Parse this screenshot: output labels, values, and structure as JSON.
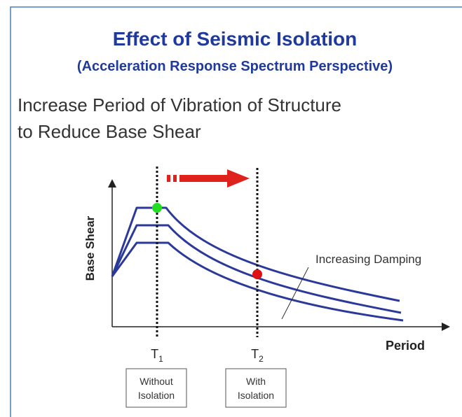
{
  "title": "Effect of Seismic Isolation",
  "subtitle": "(Acceleration Response Spectrum Perspective)",
  "heading": [
    "Increase Period of Vibration of Structure",
    "to Reduce Base Shear"
  ],
  "diagram": {
    "y_axis_label": "Base Shear",
    "x_axis_label": "Period",
    "annotation": "Increasing Damping",
    "periods": [
      {
        "symbol": "T",
        "subscript": "1",
        "box": [
          "Without",
          "Isolation"
        ]
      },
      {
        "symbol": "T",
        "subscript": "2",
        "box": [
          "With",
          "Isolation"
        ]
      }
    ]
  }
}
